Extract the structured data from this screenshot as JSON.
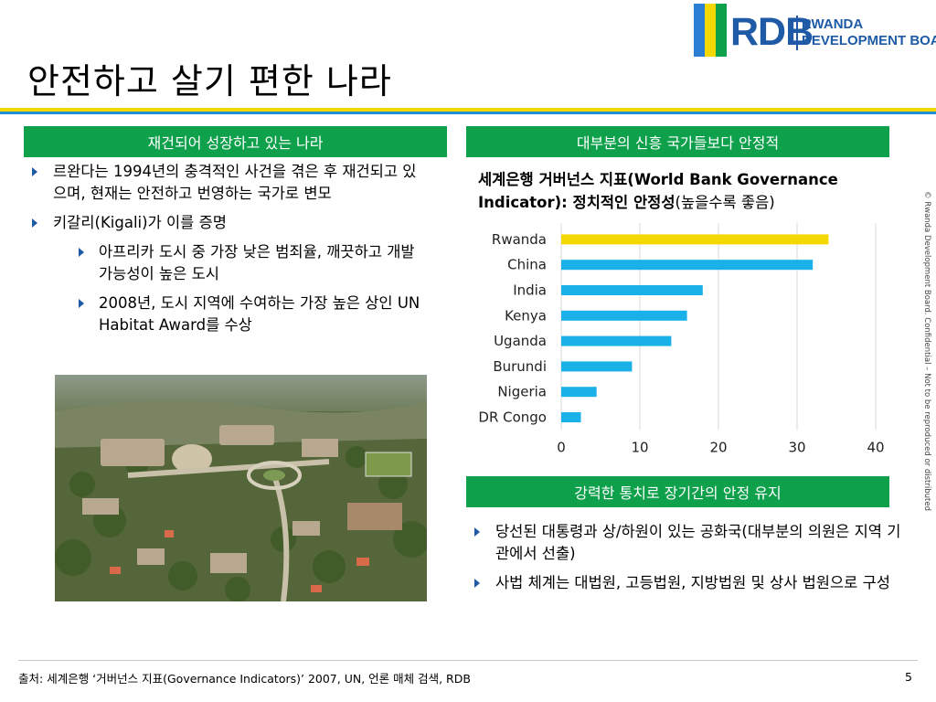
{
  "slide": {
    "title": "안전하고 살기 편한 나라",
    "page_number": "5"
  },
  "logo": {
    "abbr": "RDB",
    "line1": "RWANDA",
    "line2": "DEVELOPMENT BOARD",
    "bar_colors": [
      "#2a7fd4",
      "#f5d800",
      "#0ea04b"
    ]
  },
  "colors": {
    "accent_green": "#0ea04b",
    "accent_blue": "#1f5aa6",
    "rule_yellow": "#f5d800",
    "rule_blue": "#1f8fd6"
  },
  "left_panel": {
    "header": "재건되어 성장하고 있는 나라",
    "bullets": [
      {
        "text": "르완다는 1994년의 충격적인 사건을 겪은 후 재건되고 있으며, 현재는 안전하고 번영하는 국가로 변모"
      },
      {
        "text": "키갈리(Kigali)가 이를 증명"
      },
      {
        "text": "아프리카 도시 중 가장 낮은 범죄율, 깨끗하고 개발 가능성이 높은 도시"
      },
      {
        "text": "2008년, 도시 지역에 수여하는 가장 높은 상인 UN Habitat Award를 수상"
      }
    ]
  },
  "right_top_panel": {
    "header": "대부분의 신흥 국가들보다 안정적",
    "chart_title_line1": "세계은행 거버넌스 지표(World Bank Governance",
    "chart_title_line2_bold": "Indicator): 정치적인 안정성",
    "chart_title_line2_rest": "(높을수록 좋음)"
  },
  "chart_data": {
    "type": "bar",
    "orientation": "horizontal",
    "categories": [
      "Rwanda",
      "China",
      "India",
      "Kenya",
      "Uganda",
      "Burundi",
      "Nigeria",
      "DR Congo"
    ],
    "values": [
      34,
      32,
      18,
      16,
      14,
      9,
      4.5,
      2.5
    ],
    "bar_colors": [
      "#f5d800",
      "#1ab0e8",
      "#1ab0e8",
      "#1ab0e8",
      "#1ab0e8",
      "#1ab0e8",
      "#1ab0e8",
      "#1ab0e8"
    ],
    "xticks": [
      "0",
      "10",
      "20",
      "30",
      "40"
    ],
    "xlim": [
      0,
      40
    ],
    "grid": "vertical"
  },
  "right_bottom_panel": {
    "header": "강력한 통치로 장기간의 안정 유지",
    "bullets": [
      {
        "text": "당선된 대통령과 상/하원이 있는 공화국(대부분의 의원은 지역 기관에서 선출)"
      },
      {
        "text": "사법 체계는 대법원, 고등법원, 지방법원 및 상사 법원으로 구성"
      }
    ]
  },
  "side_note": "© Rwanda Development Board. Confidential – Not to be reproduced or distributed",
  "footer": {
    "source_label": "출처:",
    "source_text": " 세계은행 ‘거버넌스 지표(Governance Indicators)’ 2007, UN, 언론 매체 검색, RDB"
  }
}
